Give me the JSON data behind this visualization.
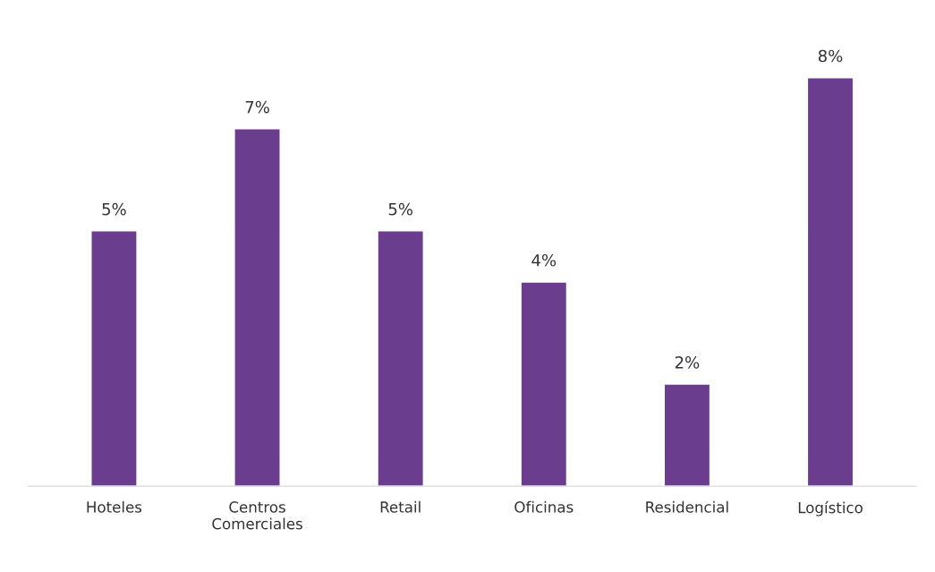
{
  "chart_data": {
    "type": "bar",
    "categories": [
      "Hoteles",
      "Centros\nComerciales",
      "Retail",
      "Oficinas",
      "Residencial",
      "Logístico"
    ],
    "values": [
      5,
      7,
      5,
      4,
      2,
      8
    ],
    "color": "#6a3d8f",
    "value_labels": [
      "5%",
      "7%",
      "5%",
      "4%",
      "2%",
      "8%"
    ],
    "grid": false,
    "legend": false
  }
}
